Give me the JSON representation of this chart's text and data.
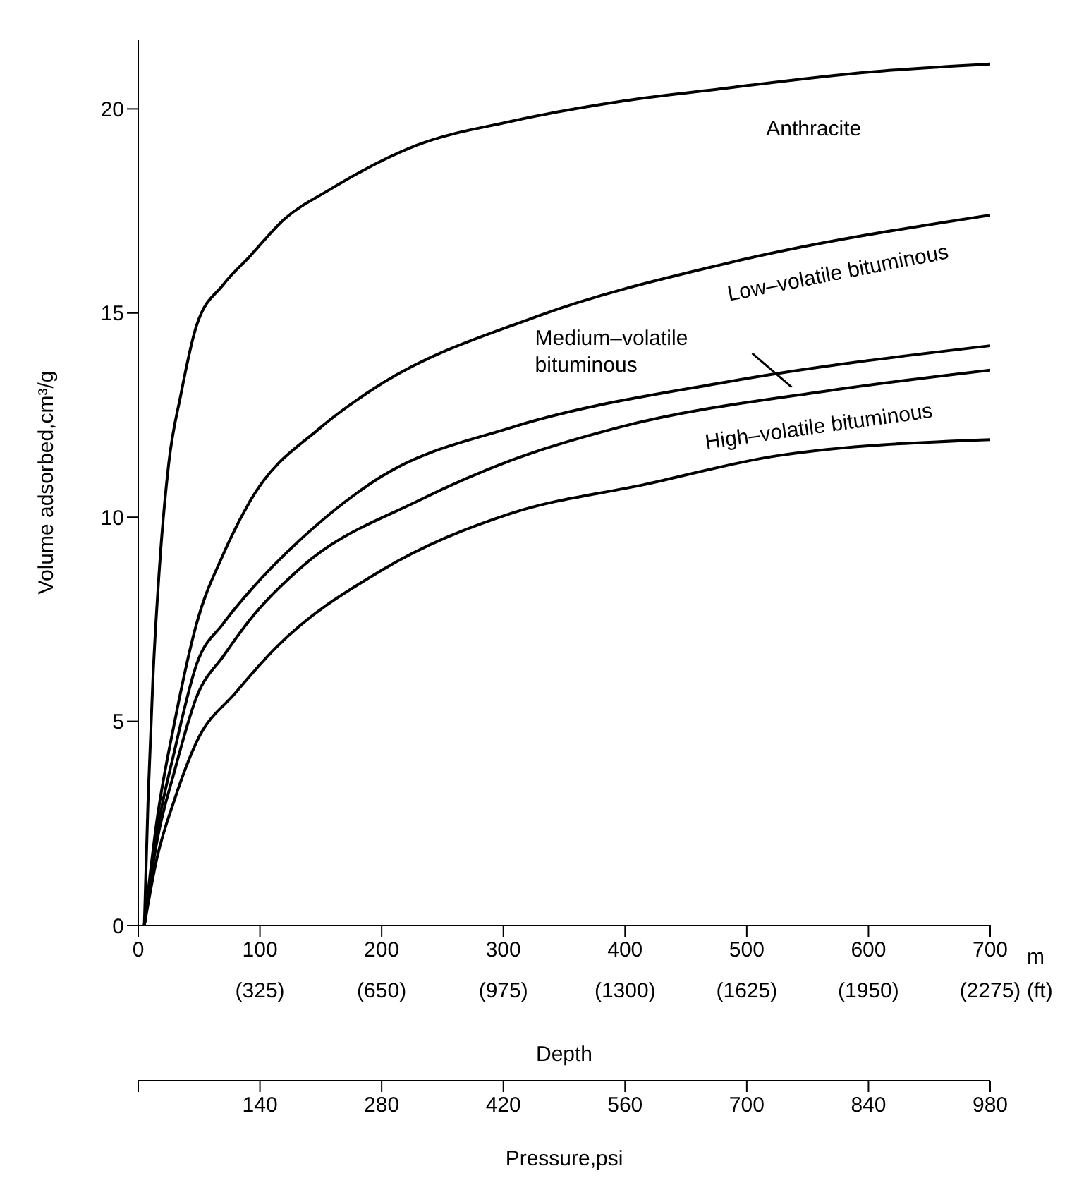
{
  "chart_data": {
    "type": "line",
    "xlabel": "Depth",
    "ylabel": "Volume adsorbed,cm³/g",
    "x2label": "Pressure,psi",
    "xlim": [
      0,
      700
    ],
    "xticks": [
      0,
      100,
      200,
      300,
      400,
      500,
      600,
      700
    ],
    "x2lim": [
      0,
      980
    ],
    "x2ticks": [
      {
        "value": 0,
        "label": null
      },
      140,
      280,
      420,
      560,
      700,
      840,
      980
    ],
    "ylim": [
      0,
      21.7
    ],
    "yticks": [
      0,
      5,
      10,
      15,
      20
    ],
    "annotations": [
      "m",
      "(ft)",
      "(325)",
      "(650)",
      "(975)",
      "(1300)",
      "(1625)",
      "(1950)",
      "(2275)"
    ],
    "series": [
      {
        "name": "Anthracite",
        "color": "#000000",
        "x": [
          5,
          8,
          12,
          18,
          25,
          35,
          48,
          70,
          92,
          120,
          156,
          228,
          307,
          400,
          481,
          600,
          700
        ],
        "values": [
          0,
          3,
          6,
          9,
          11.3,
          13,
          14.7,
          15.7,
          16.4,
          17.3,
          18,
          19.1,
          19.7,
          20.2,
          20.5,
          20.9,
          21.1
        ]
      },
      {
        "name": "Low–volatile bituminous",
        "color": "#000000",
        "x": [
          5,
          15,
          30,
          48,
          70,
          92,
          150,
          191,
          326,
          481,
          700
        ],
        "values": [
          0,
          2.5,
          5,
          7.4,
          9.1,
          10.4,
          12.2,
          13.1,
          14.9,
          16.2,
          17.4
        ]
      },
      {
        "name": "Medium–volatile bituminous",
        "color": "#000000",
        "x": [
          5,
          15,
          30,
          48,
          70,
          92,
          135,
          200,
          307,
          481,
          700
        ],
        "values": [
          0,
          2.2,
          4.3,
          6.4,
          7.4,
          8.2,
          9.5,
          11,
          12.2,
          13.3,
          14.2
        ]
      },
      {
        "name": "High–volatile bituminous",
        "color": "#000000",
        "x": [
          5,
          15,
          30,
          48,
          70,
          92,
          135,
          230,
          307,
          395,
          568,
          700
        ],
        "values": [
          0,
          2,
          3.8,
          5.6,
          6.6,
          7.5,
          8.8,
          10.4,
          11.4,
          12.2,
          13.1,
          13.6
        ]
      },
      {
        "color": "#000000",
        "x": [
          5,
          15,
          30,
          48,
          80,
          113,
          200,
          307,
          416,
          524,
          700
        ],
        "values": [
          0,
          1.6,
          3.1,
          4.5,
          5.7,
          6.8,
          8.7,
          10.1,
          10.8,
          11.5,
          11.9
        ]
      }
    ]
  }
}
